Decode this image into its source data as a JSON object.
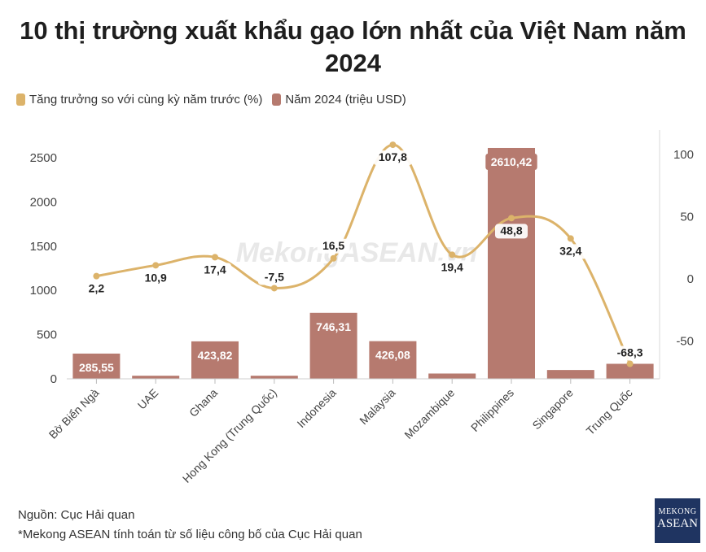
{
  "title": "10 thị trường xuất khẩu gạo lớn nhất của Việt Nam năm 2024",
  "legend": {
    "growth_label": "Tăng trưởng so với cùng kỳ năm trước (%)",
    "value_label": "Năm 2024 (triệu USD)"
  },
  "colors": {
    "bar": "#b67a6f",
    "line": "#dcb36a",
    "text": "#222222"
  },
  "watermark": "MekongASEAN.vn",
  "source": {
    "line1": "Nguồn: Cục Hải quan",
    "line2": "*Mekong ASEAN tính toán từ số liệu công bố của Cục Hải quan"
  },
  "logo": {
    "line1": "MEKONG",
    "line2": "ASEAN"
  },
  "chart_data": {
    "type": "bar",
    "categories": [
      "Bờ Biển Ngà",
      "UAE",
      "Ghana",
      "Hong Kong (Trung Quốc)",
      "Indonesia",
      "Malaysia",
      "Mozambique",
      "Philippines",
      "Singapore",
      "Trung Quốc"
    ],
    "series": [
      {
        "name": "Năm 2024 (triệu USD)",
        "type": "bar",
        "axis": "left",
        "values": [
          285.55,
          35,
          423.82,
          35,
          746.31,
          426.08,
          60,
          2610.42,
          100,
          170
        ],
        "labels": [
          "285,55",
          "",
          "423,82",
          "",
          "746,31",
          "426,08",
          "",
          "2610,42",
          "",
          ""
        ]
      },
      {
        "name": "Tăng trưởng so với cùng kỳ năm trước (%)",
        "type": "line",
        "axis": "right",
        "values": [
          2.2,
          10.9,
          17.4,
          -7.5,
          16.5,
          107.8,
          19.4,
          48.8,
          32.4,
          -68.3
        ],
        "labels": [
          "2,2",
          "10,9",
          "17,4",
          "-7,5",
          "16,5",
          "107,8",
          "19,4",
          "48,8",
          "32,4",
          "-68,3"
        ]
      }
    ],
    "y_left": {
      "ticks": [
        "0",
        "500",
        "1000",
        "1500",
        "2000",
        "2500"
      ],
      "range": [
        0,
        2650
      ]
    },
    "y_right": {
      "ticks": [
        "-50",
        "0",
        "50",
        "100"
      ],
      "range": [
        -88,
        112
      ]
    },
    "grid": false,
    "legend_position": "top-left"
  }
}
